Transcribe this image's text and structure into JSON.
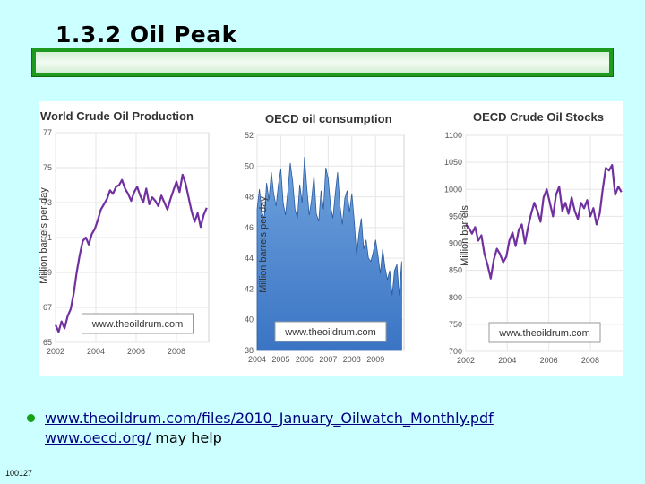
{
  "slide": {
    "title": "1.3.2 Oil Peak",
    "link1": "www.theoildrum.com/files/2010_January_Oilwatch_Monthly.pdf",
    "link2": "www.oecd.org/",
    "link2_suffix": " may help",
    "slide_number": "100127"
  },
  "colors": {
    "background": "#ccffff",
    "title_bar": "#1e9a1e",
    "bullet": "#16a016",
    "link": "#000080",
    "line_series": "#7030a0",
    "area_fill": "#3a74c4",
    "area_fill_light": "#6fa3dd"
  },
  "chart_data": [
    {
      "type": "line",
      "title": "World Crude Oil Production",
      "ylabel": "Million barrels per day",
      "xlabel": "",
      "ylim": [
        65,
        77
      ],
      "xlim": [
        2002,
        2009.6
      ],
      "yticks": [
        "77",
        "75",
        "73",
        "71",
        "69",
        "67",
        "65"
      ],
      "xticks": [
        "2002",
        "2004",
        "2006",
        "2008"
      ],
      "watermark": "www.theoildrum.com",
      "series": [
        {
          "name": "production",
          "x": [
            2002.0,
            2002.15,
            2002.3,
            2002.45,
            2002.6,
            2002.75,
            2002.9,
            2003.05,
            2003.2,
            2003.35,
            2003.5,
            2003.65,
            2003.8,
            2003.95,
            2004.1,
            2004.25,
            2004.4,
            2004.55,
            2004.7,
            2004.85,
            2005.0,
            2005.15,
            2005.3,
            2005.45,
            2005.6,
            2005.75,
            2005.9,
            2006.05,
            2006.2,
            2006.35,
            2006.5,
            2006.65,
            2006.8,
            2006.95,
            2007.1,
            2007.25,
            2007.4,
            2007.55,
            2007.7,
            2007.85,
            2008.0,
            2008.15,
            2008.3,
            2008.45,
            2008.6,
            2008.75,
            2008.9,
            2009.05,
            2009.2,
            2009.35,
            2009.5
          ],
          "values": [
            66.0,
            65.6,
            66.2,
            65.8,
            66.5,
            66.9,
            67.8,
            69.0,
            70.0,
            70.8,
            71.0,
            70.6,
            71.2,
            71.5,
            72.0,
            72.6,
            72.9,
            73.2,
            73.7,
            73.5,
            73.9,
            74.0,
            74.3,
            73.8,
            73.5,
            73.1,
            73.6,
            73.9,
            73.4,
            73.0,
            73.8,
            72.9,
            73.3,
            73.1,
            72.8,
            73.4,
            73.0,
            72.6,
            73.2,
            73.7,
            74.2,
            73.6,
            74.6,
            74.1,
            73.3,
            72.5,
            71.9,
            72.4,
            71.6,
            72.3,
            72.7
          ]
        }
      ]
    },
    {
      "type": "area",
      "title": "OECD oil consumption",
      "ylabel": "Million barrels per day",
      "xlabel": "",
      "ylim": [
        38,
        52
      ],
      "xlim": [
        2004,
        2010.2
      ],
      "yticks": [
        "52",
        "50",
        "48",
        "46",
        "44",
        "42",
        "40",
        "38"
      ],
      "xticks": [
        "2004",
        "2005",
        "2006",
        "2007",
        "2008",
        "2009"
      ],
      "watermark": "www.theoildrum.com",
      "series": [
        {
          "name": "consumption",
          "x": [
            2004.0,
            2004.1,
            2004.2,
            2004.3,
            2004.4,
            2004.5,
            2004.6,
            2004.7,
            2004.8,
            2004.9,
            2005.0,
            2005.1,
            2005.2,
            2005.3,
            2005.4,
            2005.5,
            2005.6,
            2005.7,
            2005.8,
            2005.9,
            2006.0,
            2006.1,
            2006.2,
            2006.3,
            2006.4,
            2006.5,
            2006.6,
            2006.7,
            2006.8,
            2006.9,
            2007.0,
            2007.1,
            2007.2,
            2007.3,
            2007.4,
            2007.5,
            2007.6,
            2007.7,
            2007.8,
            2007.9,
            2008.0,
            2008.1,
            2008.2,
            2008.3,
            2008.4,
            2008.5,
            2008.6,
            2008.7,
            2008.8,
            2008.9,
            2009.0,
            2009.1,
            2009.2,
            2009.3,
            2009.4,
            2009.5,
            2009.6,
            2009.7,
            2009.8,
            2009.9,
            2010.0,
            2010.1
          ],
          "values": [
            47.2,
            48.5,
            47.0,
            46.6,
            48.9,
            47.8,
            49.6,
            48.2,
            47.4,
            48.8,
            49.8,
            47.6,
            46.8,
            48.4,
            50.2,
            49.0,
            47.2,
            46.6,
            48.8,
            47.6,
            50.6,
            48.6,
            46.8,
            47.8,
            49.4,
            46.9,
            46.4,
            48.4,
            47.2,
            49.9,
            49.2,
            47.4,
            46.6,
            48.2,
            49.6,
            47.4,
            46.2,
            47.9,
            48.4,
            47.0,
            48.2,
            46.4,
            44.2,
            45.6,
            46.6,
            44.6,
            45.2,
            44.0,
            43.8,
            44.4,
            45.2,
            44.2,
            43.0,
            44.6,
            43.4,
            42.6,
            43.2,
            41.6,
            43.2,
            43.6,
            41.6,
            43.8
          ]
        }
      ]
    },
    {
      "type": "line",
      "title": "OECD Crude Oil Stocks",
      "ylabel": "Million barrels",
      "xlabel": "",
      "ylim": [
        700,
        1100
      ],
      "xlim": [
        2002,
        2009.6
      ],
      "yticks": [
        "1100",
        "1050",
        "1000",
        "950",
        "900",
        "850",
        "800",
        "750",
        "700"
      ],
      "xticks": [
        "2002",
        "2004",
        "2006",
        "2008"
      ],
      "watermark": "www.theoildrum.com",
      "series": [
        {
          "name": "stocks",
          "x": [
            2002.0,
            2002.15,
            2002.3,
            2002.45,
            2002.6,
            2002.75,
            2002.9,
            2003.05,
            2003.2,
            2003.35,
            2003.5,
            2003.65,
            2003.8,
            2003.95,
            2004.1,
            2004.25,
            2004.4,
            2004.55,
            2004.7,
            2004.85,
            2005.0,
            2005.15,
            2005.3,
            2005.45,
            2005.6,
            2005.75,
            2005.9,
            2006.05,
            2006.2,
            2006.35,
            2006.5,
            2006.65,
            2006.8,
            2006.95,
            2007.1,
            2007.25,
            2007.4,
            2007.55,
            2007.7,
            2007.85,
            2008.0,
            2008.15,
            2008.3,
            2008.45,
            2008.6,
            2008.75,
            2008.9,
            2009.05,
            2009.2,
            2009.35,
            2009.5
          ],
          "values": [
            935,
            928,
            918,
            930,
            905,
            915,
            880,
            860,
            835,
            870,
            890,
            880,
            865,
            875,
            905,
            920,
            895,
            925,
            935,
            900,
            930,
            955,
            975,
            960,
            940,
            985,
            1000,
            975,
            950,
            990,
            1005,
            960,
            975,
            955,
            985,
            960,
            945,
            975,
            965,
            980,
            950,
            965,
            935,
            955,
            1000,
            1040,
            1035,
            1045,
            990,
            1005,
            995
          ]
        }
      ]
    }
  ]
}
